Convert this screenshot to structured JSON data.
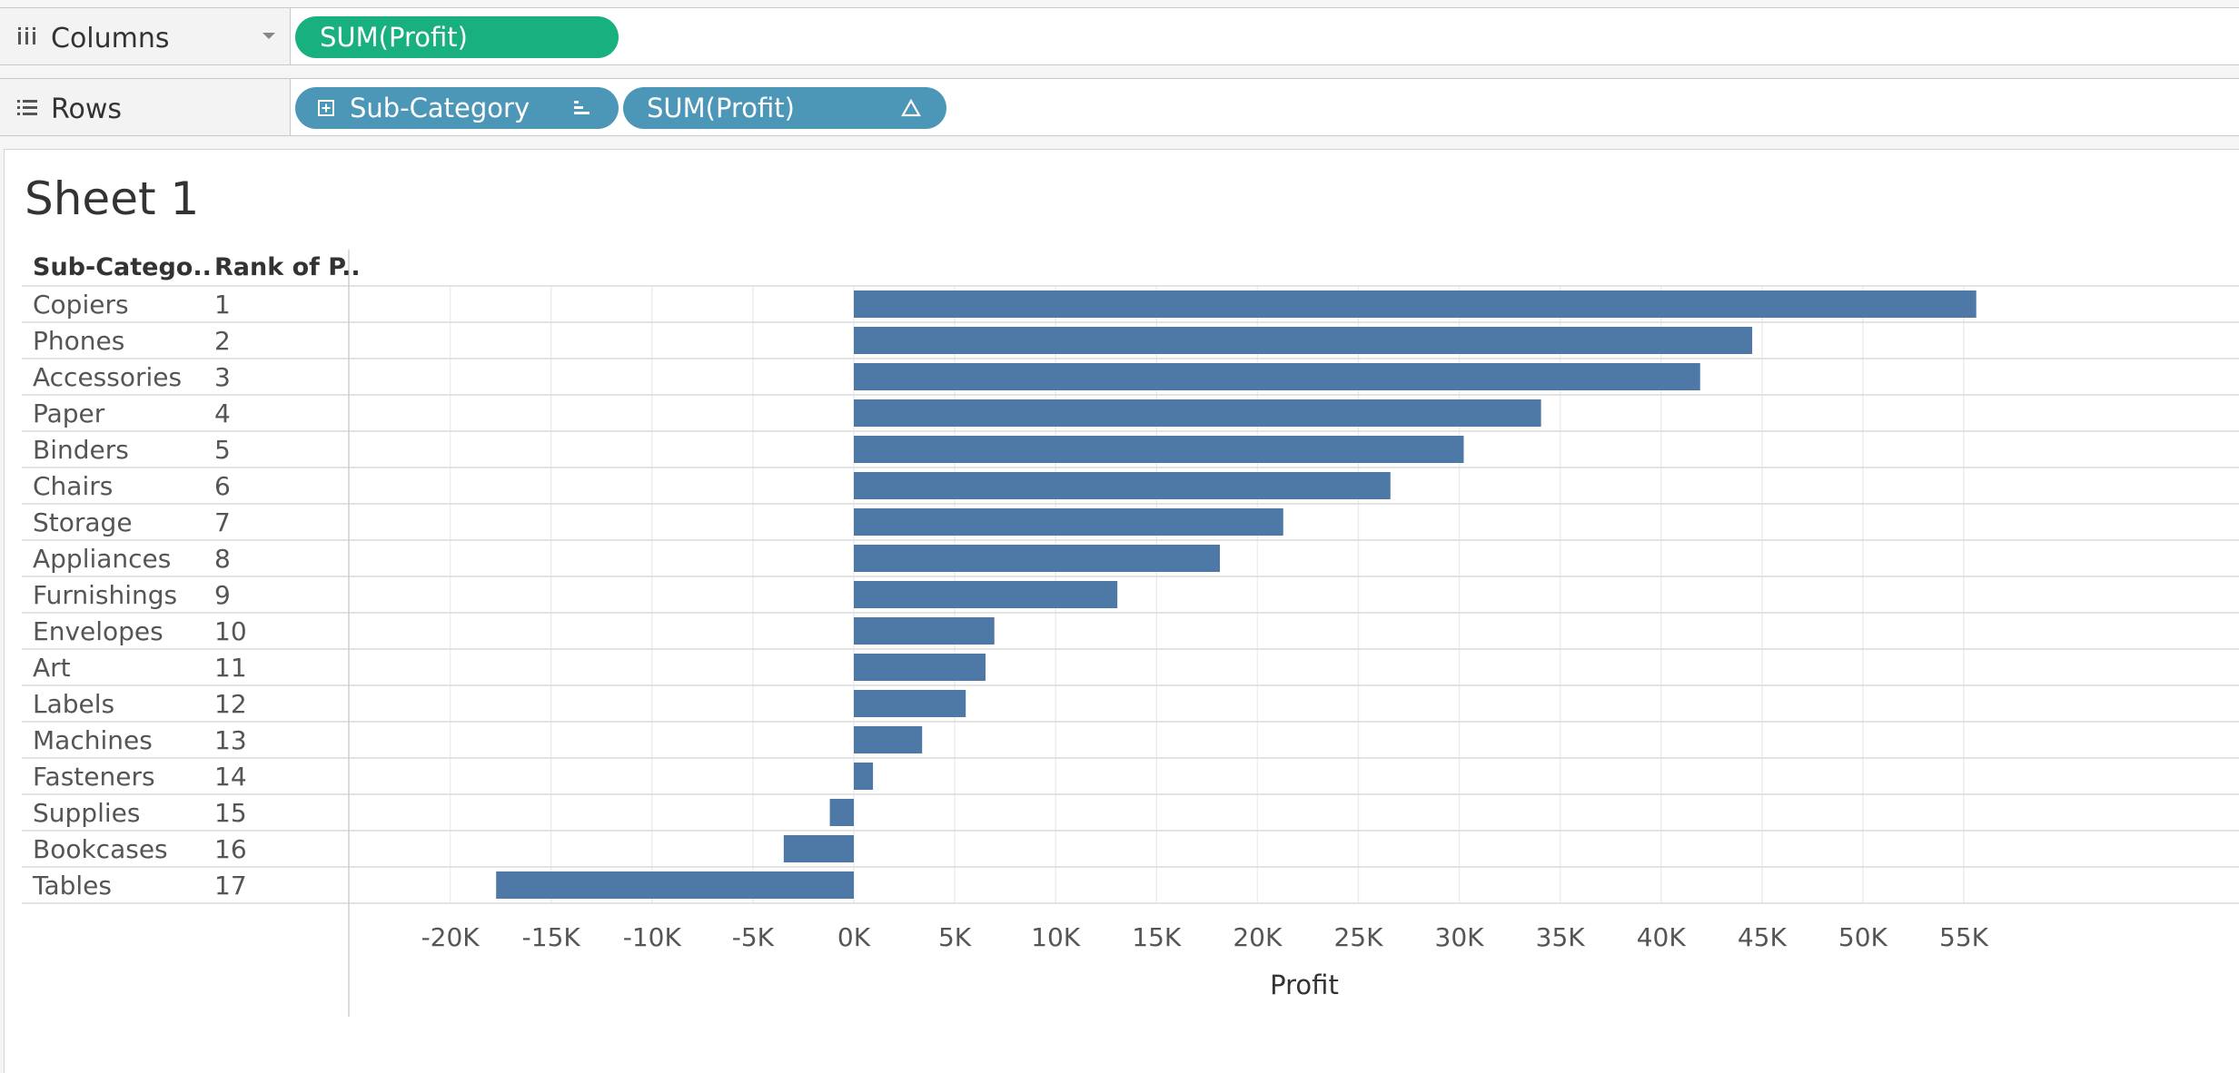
{
  "columns_shelf": {
    "label": "Columns",
    "pills": [
      "SUM(Profit)"
    ]
  },
  "rows_shelf": {
    "label": "Rows",
    "pills": [
      {
        "label": "Sub-Category",
        "icon": "sort-bars-icon"
      },
      {
        "label": "SUM(Profit)",
        "icon": "delta-icon"
      }
    ]
  },
  "sheet": {
    "title": "Sheet 1"
  },
  "colors": {
    "bar": "#4e79a7",
    "pill_green": "#17b07e",
    "pill_blue": "#4c97b7"
  },
  "chart_data": {
    "type": "bar",
    "orientation": "horizontal",
    "row_headers": [
      "Sub-Catego..",
      "Rank of P.."
    ],
    "categories": [
      "Copiers",
      "Phones",
      "Accessories",
      "Paper",
      "Binders",
      "Chairs",
      "Storage",
      "Appliances",
      "Furnishings",
      "Envelopes",
      "Art",
      "Labels",
      "Machines",
      "Fasteners",
      "Supplies",
      "Bookcases",
      "Tables"
    ],
    "ranks": [
      "1",
      "2",
      "3",
      "4",
      "5",
      "6",
      "7",
      "8",
      "9",
      "10",
      "11",
      "12",
      "13",
      "14",
      "15",
      "16",
      "17"
    ],
    "values": [
      55618,
      44516,
      41937,
      34054,
      30222,
      26590,
      21279,
      18138,
      13059,
      6964,
      6528,
      5546,
      3385,
      950,
      -1189,
      -3473,
      -17725
    ],
    "xlabel": "Profit",
    "xlim": [
      -21500,
      59000
    ],
    "xticks": [
      -20000,
      -15000,
      -10000,
      -5000,
      0,
      5000,
      10000,
      15000,
      20000,
      25000,
      30000,
      35000,
      40000,
      45000,
      50000,
      55000
    ],
    "xtick_labels": [
      "-20K",
      "-15K",
      "-10K",
      "-5K",
      "0K",
      "5K",
      "10K",
      "15K",
      "20K",
      "25K",
      "30K",
      "35K",
      "40K",
      "45K",
      "50K",
      "55K"
    ],
    "grid": true,
    "legend": "none"
  }
}
